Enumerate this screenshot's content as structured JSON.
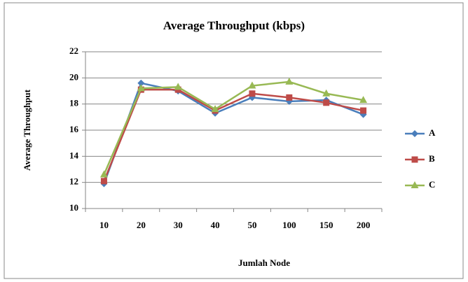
{
  "chart_data": {
    "type": "line",
    "title": "Average Throughput (kbps)",
    "x_label": "Jumlah Node",
    "y_label": "Average Throughput",
    "categories": [
      "10",
      "20",
      "30",
      "40",
      "50",
      "100",
      "150",
      "200"
    ],
    "series": [
      {
        "name": "A",
        "color": "#4a7ebb",
        "marker": "diamond",
        "values": [
          11.9,
          19.6,
          19.0,
          17.3,
          18.5,
          18.2,
          18.3,
          17.2
        ]
      },
      {
        "name": "B",
        "color": "#be4b48",
        "marker": "square",
        "values": [
          12.1,
          19.1,
          19.1,
          17.5,
          18.8,
          18.5,
          18.1,
          17.5
        ]
      },
      {
        "name": "C",
        "color": "#98b954",
        "marker": "triangle",
        "values": [
          12.6,
          19.2,
          19.3,
          17.6,
          19.4,
          19.7,
          18.8,
          18.3
        ]
      }
    ],
    "ylim": [
      10,
      22
    ],
    "yticks": [
      10,
      12,
      14,
      16,
      18,
      20,
      22
    ],
    "grid": true,
    "legend": "right"
  }
}
